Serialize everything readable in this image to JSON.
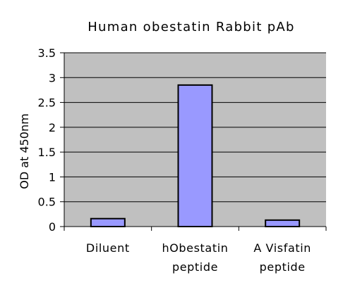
{
  "chart_data": {
    "type": "bar",
    "title": "Human obestatin Rabbit pAb",
    "xlabel": "",
    "ylabel": "OD at 450nm",
    "categories": [
      [
        "Diluent"
      ],
      [
        "hObestatin",
        "peptide"
      ],
      [
        "A Visfatin",
        "peptide"
      ]
    ],
    "values": [
      0.16,
      2.85,
      0.13
    ],
    "ylim": [
      0,
      3.5
    ],
    "yticks": [
      "0",
      "0.5",
      "1",
      "1.5",
      "2",
      "2.5",
      "3",
      "3.5"
    ],
    "grid": true,
    "legend": "none",
    "colors": {
      "bar_fill": "#9999ff",
      "bar_stroke": "#000000",
      "plot_background": "#c0c0c0",
      "gridline": "#000000"
    }
  }
}
